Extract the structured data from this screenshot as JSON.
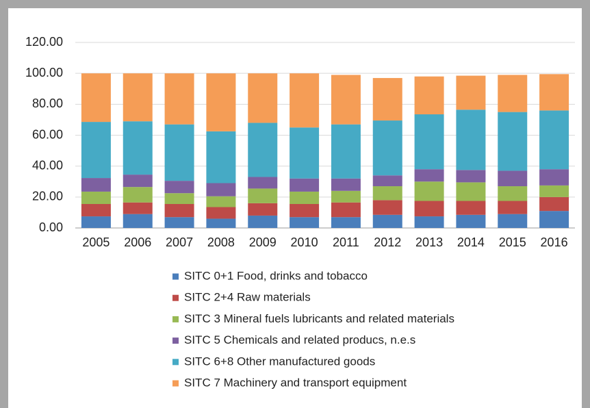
{
  "chart_data": {
    "type": "stacked_bar",
    "categories": [
      "2005",
      "2006",
      "2007",
      "2008",
      "2009",
      "2010",
      "2011",
      "2012",
      "2013",
      "2014",
      "2015",
      "2016"
    ],
    "series": [
      {
        "name": "SITC 0+1 Food, drinks and tobacco",
        "color": "#4a7ebb",
        "values": [
          7.5,
          9,
          7,
          6,
          8,
          7,
          7,
          8.5,
          7.5,
          8.5,
          9,
          11
        ]
      },
      {
        "name": "SITC 2+4 Raw materials",
        "color": "#be4b48",
        "values": [
          8,
          7.5,
          8.5,
          7.5,
          8,
          8.5,
          9.5,
          9.5,
          10,
          9,
          8.5,
          9
        ]
      },
      {
        "name": "SITC 3 Mineral fuels lubricants and related materials",
        "color": "#98b954",
        "values": [
          8,
          10,
          7,
          7,
          9.5,
          8,
          7.5,
          9,
          12.5,
          12,
          9.5,
          7.5
        ]
      },
      {
        "name": "SITC 5 Chemicals and related producs, n.e.s",
        "color": "#7d60a0",
        "values": [
          8.8,
          8,
          8,
          8.5,
          7.5,
          8.5,
          8,
          7,
          8,
          8,
          10,
          10.5
        ]
      },
      {
        "name": "SITC 6+8 Other manufactured goods",
        "color": "#46aac5",
        "values": [
          36.3,
          34.5,
          36.5,
          33.5,
          35,
          33,
          35,
          35.5,
          35.5,
          39,
          38,
          38
        ]
      },
      {
        "name": "SITC 7 Machinery and transport equipment",
        "color": "#f59d56",
        "values": [
          31.4,
          31,
          33,
          37.5,
          32,
          35,
          32,
          27.5,
          24.5,
          22,
          24,
          23.5
        ]
      }
    ],
    "ylim": [
      0,
      120
    ],
    "yticks": [
      {
        "value": 0,
        "label": "0.00"
      },
      {
        "value": 20,
        "label": "20.00"
      },
      {
        "value": 40,
        "label": "40.00"
      },
      {
        "value": 60,
        "label": "60.00"
      },
      {
        "value": 80,
        "label": "80.00"
      },
      {
        "value": 100,
        "label": "100.00"
      },
      {
        "value": 120,
        "label": "120.00"
      }
    ],
    "grid": true
  }
}
